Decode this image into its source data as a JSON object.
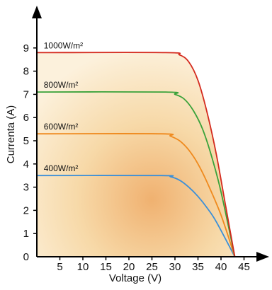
{
  "chart_data": {
    "type": "line",
    "title": "",
    "xlabel": "Voltage (V)",
    "ylabel": "Currenta (A)",
    "xlim": [
      0,
      48
    ],
    "ylim": [
      0,
      9.5
    ],
    "x_ticks": [
      {
        "value": 5,
        "label": "5"
      },
      {
        "value": 10,
        "label": "10"
      },
      {
        "value": 15,
        "label": "15"
      },
      {
        "value": 20,
        "label": "20"
      },
      {
        "value": 25,
        "label": "25"
      },
      {
        "value": 30,
        "label": "30"
      },
      {
        "value": 35,
        "label": "35"
      },
      {
        "value": 40,
        "label": "40"
      },
      {
        "value": 45,
        "label": "45"
      }
    ],
    "y_ticks": [
      {
        "value": 0,
        "label": "0"
      },
      {
        "value": 1,
        "label": "1"
      },
      {
        "value": 2,
        "label": "2"
      },
      {
        "value": 3,
        "label": "3"
      },
      {
        "value": 4,
        "label": "4"
      },
      {
        "value": 5,
        "label": "5"
      },
      {
        "value": 6,
        "label": "6"
      },
      {
        "value": 7,
        "label": "7"
      },
      {
        "value": 8,
        "label": "8"
      },
      {
        "value": 9,
        "label": "9"
      }
    ],
    "grid": false,
    "legend": "inline labels above curves",
    "fill": "warm orange gradient under 1000 W/m² curve",
    "series": [
      {
        "name": "1000W/m²",
        "color": "#d42a1e",
        "points": [
          [
            0,
            8.8
          ],
          [
            28,
            8.8
          ],
          [
            31,
            8.7
          ],
          [
            33,
            8.4
          ],
          [
            35,
            7.6
          ],
          [
            37,
            6.2
          ],
          [
            39,
            4.4
          ],
          [
            41,
            2.2
          ],
          [
            43,
            0
          ]
        ]
      },
      {
        "name": "800W/m²",
        "color": "#3aa23a",
        "points": [
          [
            0,
            7.1
          ],
          [
            28,
            7.1
          ],
          [
            30,
            7.0
          ],
          [
            32,
            6.8
          ],
          [
            34,
            6.3
          ],
          [
            36,
            5.5
          ],
          [
            38,
            4.3
          ],
          [
            40,
            2.8
          ],
          [
            43,
            0
          ]
        ]
      },
      {
        "name": "600W/m²",
        "color": "#ef8a1e",
        "points": [
          [
            0,
            5.3
          ],
          [
            27,
            5.3
          ],
          [
            29,
            5.2
          ],
          [
            31,
            5.0
          ],
          [
            33,
            4.6
          ],
          [
            35,
            4.0
          ],
          [
            37,
            3.2
          ],
          [
            40,
            1.8
          ],
          [
            43,
            0
          ]
        ]
      },
      {
        "name": "400W/m²",
        "color": "#3b8fd8",
        "points": [
          [
            0,
            3.5
          ],
          [
            27,
            3.5
          ],
          [
            29,
            3.45
          ],
          [
            31,
            3.3
          ],
          [
            33,
            3.0
          ],
          [
            35,
            2.6
          ],
          [
            37,
            2.1
          ],
          [
            39,
            1.5
          ],
          [
            43,
            0
          ]
        ]
      }
    ]
  }
}
